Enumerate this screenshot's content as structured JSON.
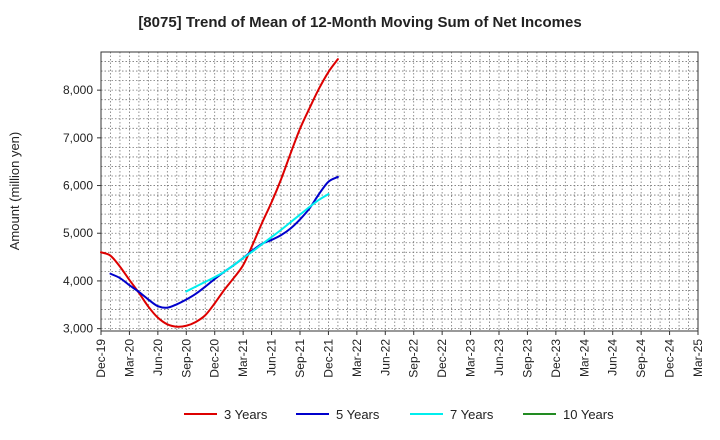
{
  "chart_data": {
    "type": "line",
    "title": "[8075]  Trend of Mean of 12-Month Moving Sum of Net Incomes",
    "xlabel": "",
    "ylabel": "Amount (million yen)",
    "x_ticks": [
      "Dec-19",
      "Mar-20",
      "Jun-20",
      "Sep-20",
      "Dec-20",
      "Mar-21",
      "Jun-21",
      "Sep-21",
      "Dec-21",
      "Mar-22",
      "Jun-22",
      "Sep-22",
      "Dec-22",
      "Mar-23",
      "Jun-23",
      "Sep-23",
      "Dec-23",
      "Mar-24",
      "Jun-24",
      "Sep-24",
      "Dec-24",
      "Mar-25"
    ],
    "y_ticks": [
      3000,
      4000,
      5000,
      6000,
      7000,
      8000
    ],
    "y_tick_labels": [
      "3,000",
      "4,000",
      "5,000",
      "6,000",
      "7,000",
      "8,000"
    ],
    "ylim": [
      2950,
      8800
    ],
    "grid": true,
    "legend_position": "bottom",
    "series": [
      {
        "name": "3 Years",
        "color": "#dd0000",
        "start_index": 0,
        "values": [
          4600,
          4530,
          4300,
          4020,
          3750,
          3460,
          3230,
          3090,
          3040,
          3060,
          3140,
          3280,
          3530,
          3810,
          4060,
          4330,
          4760,
          5220,
          5650,
          6130,
          6670,
          7190,
          7620,
          8030,
          8380,
          8650
        ]
      },
      {
        "name": "5 Years",
        "color": "#0000cc",
        "start_index": 1,
        "values": [
          4150,
          4060,
          3910,
          3770,
          3610,
          3470,
          3440,
          3510,
          3610,
          3730,
          3880,
          4040,
          4190,
          4330,
          4480,
          4640,
          4780,
          4860,
          4960,
          5100,
          5290,
          5520,
          5820,
          6080,
          6180
        ]
      },
      {
        "name": "7 Years",
        "color": "#00eeee",
        "start_index": 9,
        "values": [
          3780,
          3880,
          3980,
          4080,
          4190,
          4330,
          4480,
          4620,
          4770,
          4920,
          5070,
          5230,
          5390,
          5550,
          5700,
          5820
        ]
      },
      {
        "name": "10 Years",
        "color": "#228b22",
        "start_index": 0,
        "values": []
      }
    ]
  }
}
